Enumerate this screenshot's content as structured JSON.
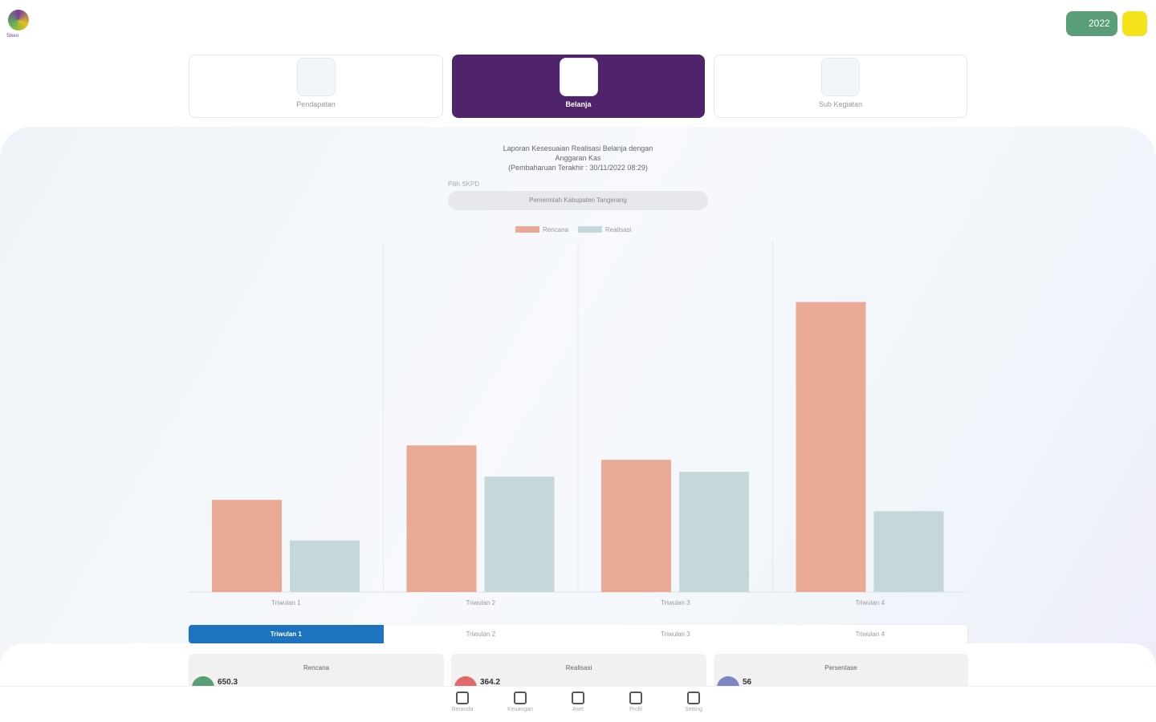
{
  "header": {
    "logo": "Sikeu",
    "year": "2022"
  },
  "menu": [
    {
      "label": "Pendapatan",
      "active": false
    },
    {
      "label": "Belanja",
      "active": true
    },
    {
      "label": "Sub Kegiatan",
      "active": false
    }
  ],
  "chart_data": {
    "type": "bar",
    "title": "Laporan Kesesuaian Realisasi Belanja dengan Anggaran Kas",
    "subtitle": "(Pembaharuan Terakhir : 30/11/2022 08:29)",
    "categories": [
      "Triwulan 1",
      "Triwulan 2",
      "Triwulan 3",
      "Triwulan 4"
    ],
    "series": [
      {
        "name": "Rencana",
        "color": "#e9a994",
        "values": [
          650.3,
          1035,
          933,
          2047
        ]
      },
      {
        "name": "Realisasi",
        "color": "#c5d8d9",
        "values": [
          364.2,
          815,
          848,
          571
        ]
      }
    ],
    "ylim": [
      0,
      2480
    ],
    "grid": true,
    "legend": "top"
  },
  "filter": {
    "label": "Pilih SKPD",
    "value": "Pemerintah Kabupaten Tangerang"
  },
  "tabs": {
    "items": [
      "Triwulan 1",
      "Triwulan 2",
      "Triwulan 3",
      "Triwulan 4"
    ],
    "active": 0
  },
  "summary": [
    {
      "label": "Rencana",
      "value": "650.3"
    },
    {
      "label": "Realisasi",
      "value": "364.2"
    },
    {
      "label": "Persentase",
      "value": "56"
    }
  ],
  "nav": [
    "Beranda",
    "Keuangan",
    "Aset",
    "Profil",
    "Setting"
  ]
}
